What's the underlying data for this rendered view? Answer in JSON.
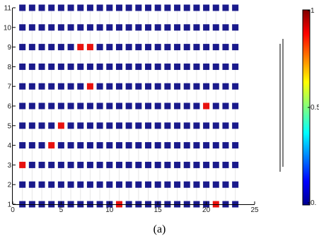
{
  "caption": "(a)",
  "chart_data": {
    "type": "heatmap",
    "x_ticks": [
      0,
      5,
      10,
      15,
      20,
      25
    ],
    "y_ticks": [
      1,
      2,
      3,
      4,
      5,
      6,
      7,
      8,
      9,
      10,
      11
    ],
    "xlim": [
      0,
      25
    ],
    "ylim": [
      1,
      11
    ],
    "cols": [
      1,
      2,
      3,
      4,
      5,
      6,
      7,
      8,
      9,
      10,
      11,
      12,
      13,
      14,
      15,
      16,
      17,
      18,
      19,
      20,
      21,
      22,
      23
    ],
    "rows": [
      1,
      2,
      3,
      4,
      5,
      6,
      7,
      8,
      9,
      10,
      11
    ],
    "default_value": 0,
    "hot_cells": [
      {
        "x": 11,
        "y": 1,
        "value": 1
      },
      {
        "x": 21,
        "y": 1,
        "value": 1
      },
      {
        "x": 1,
        "y": 3,
        "value": 1
      },
      {
        "x": 4,
        "y": 4,
        "value": 1
      },
      {
        "x": 5,
        "y": 5,
        "value": 1
      },
      {
        "x": 20,
        "y": 6,
        "value": 1
      },
      {
        "x": 8,
        "y": 7,
        "value": 1
      },
      {
        "x": 7,
        "y": 9,
        "value": 1
      },
      {
        "x": 8,
        "y": 9,
        "value": 1
      }
    ],
    "colorbar": {
      "range": [
        0,
        1
      ],
      "tick_labels": [
        "1",
        "0.5",
        "0."
      ]
    },
    "colors": {
      "low": "#1a1a8c",
      "high": "#e8110f",
      "grid": "#e6e6e6",
      "axis": "#000000"
    }
  }
}
